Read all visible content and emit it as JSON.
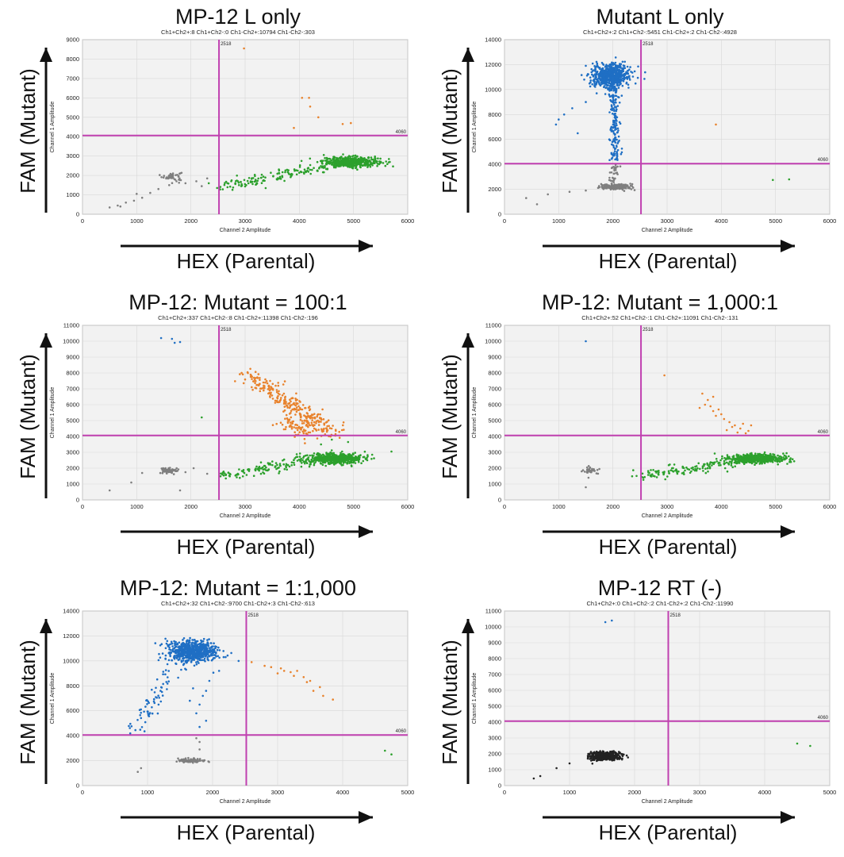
{
  "chart_data": [
    {
      "type": "scatter",
      "title": "MP-12 L only",
      "counts": "Ch1+Ch2+:8  Ch1+Ch2-:0  Ch1-Ch2+:10794  Ch1-Ch2-:303",
      "xlabel": "Channel 2 Amplitude",
      "ylabel": "Channel 1 Amplitude",
      "xlim": [
        0,
        6000
      ],
      "ylim": [
        0,
        9000
      ],
      "xticks": [
        0,
        1000,
        2000,
        3000,
        4000,
        5000,
        6000
      ],
      "yticks": [
        0,
        1000,
        2000,
        3000,
        4000,
        5000,
        6000,
        7000,
        8000,
        9000
      ],
      "x_threshold": 2518,
      "y_threshold": 4060,
      "series": [
        {
          "color": "#7f7f7f",
          "clusters": [
            {
              "cx": 1650,
              "cy": 1950,
              "sx": 90,
              "sy": 120,
              "n": 50
            }
          ],
          "points": [
            [
              500,
              350
            ],
            [
              650,
              450
            ],
            [
              800,
              600
            ],
            [
              950,
              700
            ],
            [
              1100,
              850
            ],
            [
              1250,
              1100
            ],
            [
              1400,
              1300
            ],
            [
              1900,
              1600
            ],
            [
              2100,
              1700
            ],
            [
              2300,
              1850
            ],
            [
              1000,
              1050
            ],
            [
              1600,
              1500
            ],
            [
              700,
              400
            ],
            [
              2200,
              1450
            ]
          ]
        },
        {
          "color": "#2ca02c",
          "clusters": [
            {
              "cx": 4950,
              "cy": 2700,
              "sx": 260,
              "sy": 130,
              "n": 500
            }
          ],
          "trend": {
            "x0": 2550,
            "y0": 1450,
            "x1": 4700,
            "y1": 2550,
            "n": 150,
            "jitter": 160
          }
        },
        {
          "color": "#e8822c",
          "points": [
            [
              2980,
              8550
            ],
            [
              4050,
              6000
            ],
            [
              4180,
              6000
            ],
            [
              4200,
              5550
            ],
            [
              4350,
              5000
            ],
            [
              4800,
              4650
            ],
            [
              4950,
              4700
            ],
            [
              3900,
              4450
            ]
          ]
        }
      ]
    },
    {
      "type": "scatter",
      "title": "Mutant L only",
      "counts": "Ch1+Ch2+:2  Ch1+Ch2-:5451  Ch1-Ch2+:2  Ch1-Ch2-:4928",
      "xlabel": "Channel 2 Amplitude",
      "ylabel": "Channel 1 Amplitude",
      "xlim": [
        0,
        6000
      ],
      "ylim": [
        0,
        14000
      ],
      "xticks": [
        0,
        1000,
        2000,
        3000,
        4000,
        5000,
        6000
      ],
      "yticks": [
        0,
        2000,
        4000,
        6000,
        8000,
        10000,
        12000,
        14000
      ],
      "x_threshold": 2518,
      "y_threshold": 4060,
      "series": [
        {
          "color": "#1f6fc4",
          "clusters": [
            {
              "cx": 1950,
              "cy": 11100,
              "sx": 170,
              "sy": 450,
              "n": 700
            }
          ],
          "trend": {
            "x0": 2020,
            "y0": 10200,
            "x1": 2050,
            "y1": 4200,
            "n": 180,
            "jitter": 90
          },
          "points": [
            [
              950,
              7200
            ],
            [
              1100,
              8000
            ],
            [
              1250,
              8500
            ],
            [
              1350,
              6500
            ],
            [
              1500,
              9000
            ],
            [
              1700,
              9700
            ],
            [
              1000,
              7600
            ]
          ]
        },
        {
          "color": "#7f7f7f",
          "clusters": [
            {
              "cx": 2050,
              "cy": 2200,
              "sx": 140,
              "sy": 110,
              "n": 220
            }
          ],
          "trend": {
            "x0": 2000,
            "y0": 2600,
            "x1": 2050,
            "y1": 3900,
            "n": 30,
            "jitter": 70
          },
          "points": [
            [
              400,
              1300
            ],
            [
              600,
              800
            ],
            [
              800,
              1600
            ],
            [
              1200,
              1800
            ],
            [
              1500,
              1900
            ]
          ]
        },
        {
          "color": "#2ca02c",
          "points": [
            [
              4950,
              2750
            ],
            [
              5250,
              2800
            ]
          ]
        },
        {
          "color": "#e8822c",
          "points": [
            [
              3900,
              7200
            ]
          ]
        }
      ]
    },
    {
      "type": "scatter",
      "title": "MP-12: Mutant = 100:1",
      "counts": "Ch1+Ch2+:337  Ch1+Ch2-:8  Ch1-Ch2+:11398  Ch1-Ch2-:196",
      "xlabel": "Channel 2 Amplitude",
      "ylabel": "Channel 1 Amplitude",
      "xlim": [
        0,
        6000
      ],
      "ylim": [
        0,
        11000
      ],
      "xticks": [
        0,
        1000,
        2000,
        3000,
        4000,
        5000,
        6000
      ],
      "yticks": [
        0,
        1000,
        2000,
        3000,
        4000,
        5000,
        6000,
        7000,
        8000,
        9000,
        10000,
        11000
      ],
      "x_threshold": 2518,
      "y_threshold": 4060,
      "series": [
        {
          "color": "#e8822c",
          "clusters": [
            {
              "cx": 4050,
              "cy": 4700,
              "sx": 200,
              "sy": 350,
              "n": 100
            }
          ],
          "trend": {
            "x0": 3000,
            "y0": 8000,
            "x1": 4650,
            "y1": 4150,
            "n": 240,
            "jitter": 250
          }
        },
        {
          "color": "#2ca02c",
          "clusters": [
            {
              "cx": 4650,
              "cy": 2600,
              "sx": 250,
              "sy": 160,
              "n": 520
            }
          ],
          "trend": {
            "x0": 2600,
            "y0": 1600,
            "x1": 4300,
            "y1": 2500,
            "n": 130,
            "jitter": 180
          },
          "points": [
            [
              5700,
              3050
            ],
            [
              4400,
              3500
            ],
            [
              4600,
              3800
            ],
            [
              4900,
              3650
            ],
            [
              2200,
              5200
            ]
          ]
        },
        {
          "color": "#7f7f7f",
          "clusters": [
            {
              "cx": 1580,
              "cy": 1850,
              "sx": 80,
              "sy": 100,
              "n": 60
            }
          ],
          "points": [
            [
              500,
              600
            ],
            [
              900,
              1100
            ],
            [
              1100,
              1700
            ],
            [
              1900,
              1750
            ],
            [
              2050,
              2000
            ],
            [
              2300,
              1650
            ],
            [
              1800,
              600
            ]
          ]
        },
        {
          "color": "#1f6fc4",
          "points": [
            [
              1450,
              10200
            ],
            [
              1650,
              10150
            ],
            [
              1800,
              9950
            ],
            [
              1700,
              9900
            ]
          ]
        }
      ]
    },
    {
      "type": "scatter",
      "title": "MP-12: Mutant = 1,000:1",
      "counts": "Ch1+Ch2+:52  Ch1+Ch2-:1  Ch1-Ch2+:11091  Ch1-Ch2-:131",
      "xlabel": "Channel 2 Amplitude",
      "ylabel": "Channel 1 Amplitude",
      "xlim": [
        0,
        6000
      ],
      "ylim": [
        0,
        11000
      ],
      "xticks": [
        0,
        1000,
        2000,
        3000,
        4000,
        5000,
        6000
      ],
      "yticks": [
        0,
        1000,
        2000,
        3000,
        4000,
        5000,
        6000,
        7000,
        8000,
        9000,
        10000,
        11000
      ],
      "x_threshold": 2518,
      "y_threshold": 4060,
      "series": [
        {
          "color": "#2ca02c",
          "clusters": [
            {
              "cx": 4650,
              "cy": 2600,
              "sx": 270,
              "sy": 150,
              "n": 520
            }
          ],
          "trend": {
            "x0": 2550,
            "y0": 1450,
            "x1": 4300,
            "y1": 2500,
            "n": 140,
            "jitter": 170
          }
        },
        {
          "color": "#e8822c",
          "points": [
            [
              2950,
              7850
            ],
            [
              3650,
              6700
            ],
            [
              3750,
              6300
            ],
            [
              3850,
              6500
            ],
            [
              3800,
              5900
            ],
            [
              3950,
              5700
            ],
            [
              3900,
              5300
            ],
            [
              4050,
              5100
            ],
            [
              4150,
              4900
            ],
            [
              4250,
              4700
            ],
            [
              4400,
              4800
            ],
            [
              4350,
              4500
            ],
            [
              4100,
              4400
            ],
            [
              4500,
              4350
            ],
            [
              4300,
              4250
            ],
            [
              3700,
              6000
            ],
            [
              4000,
              5400
            ],
            [
              4200,
              4600
            ],
            [
              4550,
              4700
            ],
            [
              3600,
              5800
            ],
            [
              4450,
              4200
            ],
            [
              3850,
              5600
            ]
          ]
        },
        {
          "color": "#7f7f7f",
          "clusters": [
            {
              "cx": 1570,
              "cy": 1850,
              "sx": 80,
              "sy": 100,
              "n": 40
            }
          ],
          "points": [
            [
              1500,
              800
            ],
            [
              1550,
              1400
            ],
            [
              1750,
              1950
            ]
          ]
        },
        {
          "color": "#1f6fc4",
          "points": [
            [
              1500,
              10000
            ]
          ]
        }
      ]
    },
    {
      "type": "scatter",
      "title": "MP-12: Mutant = 1:1,000",
      "counts": "Ch1+Ch2+:32  Ch1+Ch2-:9700  Ch1-Ch2+:3  Ch1-Ch2-:613",
      "xlabel": "Channel 2 Amplitude",
      "ylabel": "Channel 1 Amplitude",
      "xlim": [
        0,
        5000
      ],
      "ylim": [
        0,
        14000
      ],
      "xticks": [
        0,
        1000,
        2000,
        3000,
        4000,
        5000
      ],
      "yticks": [
        0,
        2000,
        4000,
        6000,
        8000,
        10000,
        12000,
        14000
      ],
      "x_threshold": 2518,
      "y_threshold": 4060,
      "series": [
        {
          "color": "#1f6fc4",
          "clusters": [
            {
              "cx": 1680,
              "cy": 10800,
              "sx": 180,
              "sy": 420,
              "n": 700
            }
          ],
          "trend": {
            "x0": 1450,
            "y0": 9500,
            "x1": 780,
            "y1": 4300,
            "n": 70,
            "jitter": 200
          },
          "points": [
            [
              1750,
              5800
            ],
            [
              1800,
              6500
            ],
            [
              1850,
              7200
            ],
            [
              1900,
              5200
            ],
            [
              1700,
              7800
            ],
            [
              1950,
              8400
            ],
            [
              1800,
              4700
            ],
            [
              2100,
              9200
            ],
            [
              2200,
              10300
            ],
            [
              2400,
              10000
            ],
            [
              1650,
              6800
            ],
            [
              1900,
              7600
            ]
          ]
        },
        {
          "color": "#7f7f7f",
          "clusters": [
            {
              "cx": 1650,
              "cy": 2000,
              "sx": 110,
              "sy": 80,
              "n": 100
            }
          ],
          "points": [
            [
              850,
              1100
            ],
            [
              900,
              1400
            ],
            [
              1800,
              2900
            ],
            [
              1800,
              3500
            ],
            [
              1750,
              3800
            ]
          ]
        },
        {
          "color": "#e8822c",
          "points": [
            [
              2600,
              9900
            ],
            [
              2800,
              9600
            ],
            [
              2900,
              9500
            ],
            [
              3000,
              9000
            ],
            [
              3100,
              9200
            ],
            [
              3200,
              9100
            ],
            [
              3250,
              8800
            ],
            [
              3400,
              8700
            ],
            [
              3500,
              8400
            ],
            [
              3550,
              7600
            ],
            [
              3700,
              7200
            ],
            [
              3850,
              6900
            ],
            [
              3050,
              9400
            ],
            [
              3300,
              9200
            ],
            [
              3650,
              7900
            ],
            [
              3450,
              8300
            ]
          ]
        },
        {
          "color": "#2ca02c",
          "points": [
            [
              4650,
              2800
            ],
            [
              4750,
              2500
            ]
          ]
        }
      ]
    },
    {
      "type": "scatter",
      "title": "MP-12 RT (-)",
      "counts": "Ch1+Ch2+:0  Ch1+Ch2-:2  Ch1-Ch2+:2  Ch1-Ch2-:11990",
      "xlabel": "Channel 2 Amplitude",
      "ylabel": "Channel 1 Amplitude",
      "xlim": [
        0,
        5000
      ],
      "ylim": [
        0,
        11000
      ],
      "xticks": [
        0,
        1000,
        2000,
        3000,
        4000,
        5000
      ],
      "yticks": [
        0,
        1000,
        2000,
        3000,
        4000,
        5000,
        6000,
        7000,
        8000,
        9000,
        10000,
        11000
      ],
      "x_threshold": 2518,
      "y_threshold": 4060,
      "series": [
        {
          "color": "#222222",
          "clusters": [
            {
              "cx": 1550,
              "cy": 1850,
              "sx": 110,
              "sy": 130,
              "n": 550
            }
          ],
          "points": [
            [
              450,
              450
            ],
            [
              550,
              600
            ],
            [
              800,
              1100
            ],
            [
              1000,
              1400
            ]
          ]
        },
        {
          "color": "#1f6fc4",
          "points": [
            [
              1550,
              10300
            ],
            [
              1650,
              10400
            ]
          ]
        },
        {
          "color": "#2ca02c",
          "points": [
            [
              4500,
              2650
            ],
            [
              4700,
              2500
            ]
          ]
        }
      ]
    }
  ],
  "annotations": {
    "y_axis_label": "FAM (Mutant)",
    "x_axis_label": "HEX (Parental)",
    "threshold_color": "#c040b0",
    "arrow_color": "#111111"
  }
}
